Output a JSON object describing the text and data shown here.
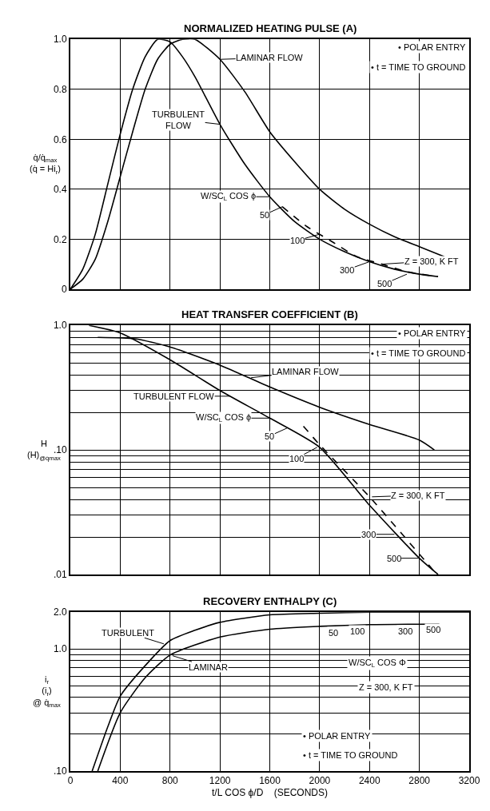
{
  "chart_data": [
    {
      "type": "line",
      "title": "NORMALIZED HEATING PULSE (A)",
      "ylabel": "q̇/q̇$_{max}$\n(q̇ = Hi$_{r}$)",
      "xlim": [
        0,
        3200
      ],
      "xticks": [
        0,
        400,
        800,
        1200,
        1600,
        2000,
        2400,
        2800,
        3200
      ],
      "ylim": [
        0,
        1.0
      ],
      "yticks": [
        0,
        0.2,
        0.4,
        0.6,
        0.8,
        {
          "value": 1.0,
          "label": "1.0"
        }
      ],
      "grid": true,
      "tick_labels": "y",
      "series": [
        {
          "color": "#000000",
          "x": [
            0,
            100,
            200,
            300,
            400,
            500,
            600,
            700,
            800,
            900,
            1000,
            1200,
            1400,
            1600,
            1800,
            2000,
            2200,
            2400,
            2600,
            2800,
            2950
          ],
          "values": [
            0,
            0.08,
            0.22,
            0.42,
            0.62,
            0.8,
            0.93,
            1.0,
            0.99,
            0.93,
            0.85,
            0.66,
            0.5,
            0.37,
            0.27,
            0.2,
            0.15,
            0.11,
            0.08,
            0.06,
            0.05
          ]
        },
        {
          "color": "#000000",
          "x": [
            0,
            100,
            200,
            300,
            400,
            500,
            600,
            700,
            800,
            900,
            1000,
            1200,
            1400,
            1600,
            1800,
            2000,
            2200,
            2400,
            2600,
            2800,
            3000
          ],
          "values": [
            0,
            0.04,
            0.12,
            0.27,
            0.45,
            0.63,
            0.8,
            0.92,
            0.98,
            1.0,
            1.0,
            0.92,
            0.79,
            0.63,
            0.51,
            0.4,
            0.32,
            0.26,
            0.21,
            0.17,
            0.13
          ]
        },
        {
          "color": "#000000",
          "line_style": "dashed",
          "x": [
            1700,
            1900,
            2100,
            2300,
            2500,
            2700,
            2950
          ],
          "values": [
            0.33,
            0.25,
            0.19,
            0.13,
            0.1,
            0.07,
            0.05
          ]
        }
      ],
      "annotations": [
        {
          "text": "LAMINAR FLOW",
          "x": 1200,
          "y": 0.92
        },
        {
          "text": "TURBULENT\nFLOW",
          "x": 1200,
          "y": 0.66
        },
        {
          "text": "W/SC$_{L}$ COS ϕ",
          "x": 1600,
          "y": 0.37
        },
        {
          "text": "50",
          "x": 1700,
          "y": 0.33
        },
        {
          "text": "100",
          "x": 2000,
          "y": 0.22
        },
        {
          "text": "300",
          "x": 2400,
          "y": 0.11
        },
        {
          "text": "500",
          "x": 2700,
          "y": 0.06
        },
        {
          "text": "Z = 300, K FT",
          "x": 2500,
          "y": 0.1
        },
        "• POLAR ENTRY",
        "• t = TIME TO GROUND"
      ]
    },
    {
      "type": "line",
      "title": "HEAT TRANSFER COEFFICIENT (B)",
      "ylabel": "H\n(H)$_{@q̇max}$",
      "xlim": [
        0,
        3200
      ],
      "xticks": [
        0,
        400,
        800,
        1200,
        1600,
        2000,
        2400,
        2800,
        3200
      ],
      "ylim": [
        0.01,
        1.0
      ],
      "log": true,
      "grid": true,
      "tick_labels": "y",
      "yticks": [
        {
          "value": 0.01,
          "label": ".01"
        },
        {
          "value": 0.02,
          "label": null
        },
        {
          "value": 0.03,
          "label": null
        },
        {
          "value": 0.04,
          "label": null
        },
        {
          "value": 0.05,
          "label": null
        },
        {
          "value": 0.06,
          "label": null
        },
        {
          "value": 0.07,
          "label": null
        },
        {
          "value": 0.08,
          "label": null
        },
        {
          "value": 0.09,
          "label": null
        },
        {
          "value": 0.1,
          "label": ".10"
        },
        {
          "value": 0.2,
          "label": null
        },
        {
          "value": 0.3,
          "label": null
        },
        {
          "value": 0.4,
          "label": null
        },
        {
          "value": 0.5,
          "label": null
        },
        {
          "value": 0.6,
          "label": null
        },
        {
          "value": 0.7,
          "label": null
        },
        {
          "value": 0.8,
          "label": null
        },
        {
          "value": 0.9,
          "label": null
        },
        {
          "value": 1.0,
          "label": "1.0"
        }
      ],
      "series": [
        {
          "color": "#000000",
          "x": [
            150,
            400,
            800,
            1200,
            1600,
            2000,
            2400,
            2800,
            2950
          ],
          "values": [
            1.0,
            0.87,
            0.53,
            0.3,
            0.18,
            0.105,
            0.036,
            0.0135,
            0.01
          ]
        },
        {
          "color": "#000000",
          "x": [
            220,
            520,
            800,
            1200,
            1600,
            2000,
            2400,
            2800,
            2920
          ],
          "values": [
            0.8,
            0.78,
            0.67,
            0.48,
            0.32,
            0.22,
            0.16,
            0.12,
            0.1
          ]
        },
        {
          "color": "#000000",
          "line_style": "dashed",
          "x": [
            1870,
            2000,
            2400,
            2940
          ],
          "values": [
            0.155,
            0.11,
            0.042,
            0.01
          ]
        }
      ],
      "annotations": [
        {
          "text": "LAMINAR FLOW",
          "x": 1450,
          "y": 0.38
        },
        {
          "text": "TURBULENT FLOW",
          "x": 1280,
          "y": 0.27
        },
        {
          "text": "W/SC$_{L}$ COS ϕ",
          "x": 1600,
          "y": 0.18
        },
        {
          "text": "50",
          "x": 1740,
          "y": 0.15
        },
        {
          "text": "100",
          "x": 1980,
          "y": 0.105
        },
        {
          "text": "Z = 300, K FT",
          "x": 2420,
          "y": 0.042
        },
        {
          "text": "300",
          "x": 2600,
          "y": 0.021
        },
        {
          "text": "500",
          "x": 2800,
          "y": 0.0135
        },
        "• POLAR ENTRY",
        "• t = TIME TO GROUND"
      ]
    },
    {
      "type": "line",
      "title": "RECOVERY ENTHALPY (C)",
      "ylabel": "i$_{r}$\n(i$_{r}$)\n@ q̇$_{max}$",
      "xlabel": "t/L COS ϕ/D    (SECONDS)",
      "xlim": [
        0,
        3200
      ],
      "xticks": [
        0,
        400,
        800,
        1200,
        1600,
        2000,
        2400,
        2800,
        3200
      ],
      "ylim": [
        0.1,
        2.0
      ],
      "log": true,
      "grid": true,
      "yticks": [
        {
          "value": 0.1,
          "label": ".10"
        },
        {
          "value": 0.2,
          "label": null
        },
        {
          "value": 0.3,
          "label": null
        },
        {
          "value": 0.4,
          "label": null
        },
        {
          "value": 0.5,
          "label": null
        },
        {
          "value": 0.6,
          "label": null
        },
        {
          "value": 0.7,
          "label": null
        },
        {
          "value": 0.8,
          "label": null
        },
        {
          "value": 0.9,
          "label": null
        },
        {
          "value": 1.0,
          "label": "1.0"
        },
        {
          "value": 2.0,
          "label": "2.0"
        }
      ],
      "series": [
        {
          "color": "#000000",
          "x": [
            175,
            300,
            400,
            590,
            800,
            1000,
            1200,
            1600,
            2000,
            2400,
            3200
          ],
          "values": [
            0.1,
            0.23,
            0.41,
            0.71,
            1.17,
            1.42,
            1.65,
            1.9,
            1.96,
            2.0,
            2.0
          ]
        },
        {
          "color": "#000000",
          "x": [
            220,
            400,
            600,
            800,
            1200,
            1600,
            2000,
            2400,
            2960
          ],
          "values": [
            0.1,
            0.3,
            0.58,
            0.89,
            1.25,
            1.45,
            1.53,
            1.58,
            1.6
          ]
        }
      ],
      "annotations": [
        {
          "text": "TURBULENT",
          "x": 750,
          "y": 1.1
        },
        {
          "text": "LAMINAR",
          "x": 820,
          "y": 0.88
        },
        "50",
        "100",
        "300",
        "500",
        "W/SC$_{L}$ COS Φ",
        "Z = 300, K FT",
        "• POLAR ENTRY",
        "• t = TIME TO GROUND"
      ]
    }
  ]
}
